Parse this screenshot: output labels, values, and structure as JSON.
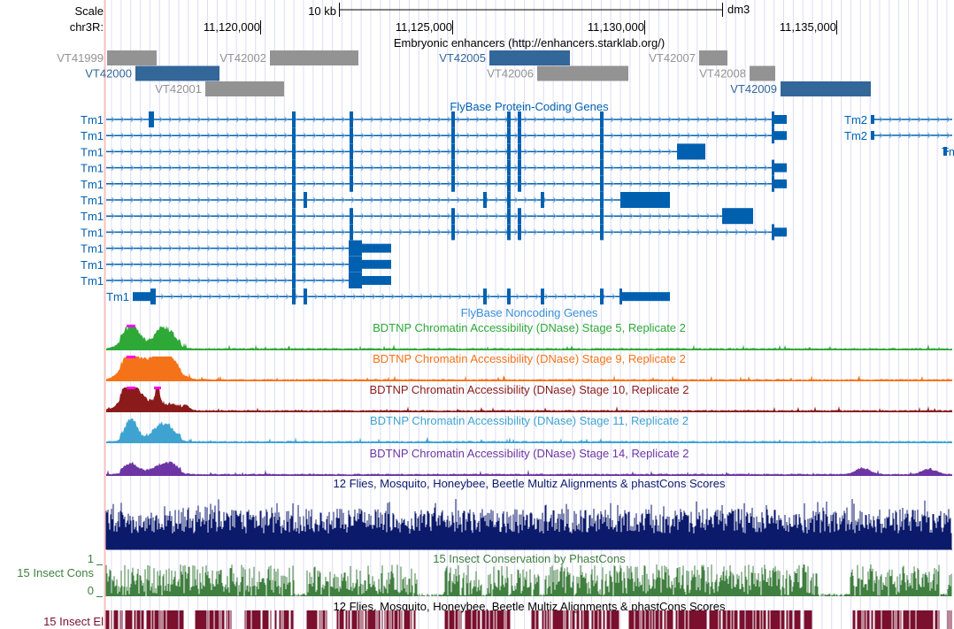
{
  "ruler": {
    "scale_label": "Scale",
    "scale_bar_label": "10 kb",
    "assembly": "dm3",
    "chrom_label": "chr3R:",
    "ticks": [
      "11,120,000",
      "11,125,000",
      "11,130,000",
      "11,135,000"
    ]
  },
  "enhancers": {
    "title": "Embryonic enhancers (http://enhancers.starklab.org/)",
    "items": [
      {
        "name": "VT41999",
        "color": "#939393"
      },
      {
        "name": "VT42000",
        "color": "#336699"
      },
      {
        "name": "VT42001",
        "color": "#939393"
      },
      {
        "name": "VT42002",
        "color": "#939393"
      },
      {
        "name": "VT42005",
        "color": "#336699"
      },
      {
        "name": "VT42006",
        "color": "#939393"
      },
      {
        "name": "VT42007",
        "color": "#939393"
      },
      {
        "name": "VT42008",
        "color": "#939393"
      },
      {
        "name": "VT42009",
        "color": "#336699"
      }
    ]
  },
  "genes": {
    "title": "FlyBase Protein-Coding Genes",
    "color": "#0060b0",
    "tm1_label": "Tm1",
    "tm2_label": "Tm2",
    "noncoding_title": "FlyBase Noncoding Genes"
  },
  "dnase_tracks": [
    {
      "title": "BDTNP Chromatin Accessibility (DNase) Stage 5, Replicate 2",
      "color": "#2ea836"
    },
    {
      "title": "BDTNP Chromatin Accessibility (DNase) Stage 9, Replicate 2",
      "color": "#f57318"
    },
    {
      "title": "BDTNP Chromatin Accessibility (DNase) Stage 10, Replicate 2",
      "color": "#8b1a1a"
    },
    {
      "title": "BDTNP Chromatin Accessibility (DNase) Stage 11, Replicate 2",
      "color": "#3ea3d1"
    },
    {
      "title": "BDTNP Chromatin Accessibility (DNase) Stage 14, Replicate 2",
      "color": "#6d35a3"
    }
  ],
  "multiz": {
    "title": "12 Flies, Mosquito, Honeybee, Beetle Multiz Alignments & phastCons Scores",
    "color": "#0b1a6b"
  },
  "phastcons": {
    "title": "15 Insect Conservation by PhastCons",
    "side_label": "15 Insect Cons",
    "max_label": "1",
    "min_label": "0",
    "color": "#3f7f3f"
  },
  "elements": {
    "title": "12 Flies, Mosquito, Honeybee, Beetle Multiz Alignments & phastCons Scores",
    "side_label": "15 Insect El",
    "color": "#7a0f2e"
  }
}
